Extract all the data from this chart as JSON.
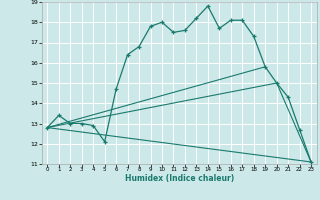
{
  "xlabel": "Humidex (Indice chaleur)",
  "bg_color": "#cce8e8",
  "grid_color": "#ffffff",
  "line_color": "#1a7a6e",
  "xlim": [
    -0.5,
    23.5
  ],
  "ylim": [
    11,
    19
  ],
  "xticks": [
    0,
    1,
    2,
    3,
    4,
    5,
    6,
    7,
    8,
    9,
    10,
    11,
    12,
    13,
    14,
    15,
    16,
    17,
    18,
    19,
    20,
    21,
    22,
    23
  ],
  "yticks": [
    11,
    12,
    13,
    14,
    15,
    16,
    17,
    18,
    19
  ],
  "series1_x": [
    0,
    1,
    2,
    3,
    4,
    5,
    6,
    7,
    8,
    9,
    10,
    11,
    12,
    13,
    14,
    15,
    16,
    17,
    18,
    19,
    20,
    21,
    22,
    23
  ],
  "series1_y": [
    12.8,
    13.4,
    13.0,
    13.0,
    12.9,
    12.1,
    14.7,
    16.4,
    16.8,
    17.8,
    18.0,
    17.5,
    17.6,
    18.2,
    18.8,
    17.7,
    18.1,
    18.1,
    17.3,
    15.8,
    15.0,
    14.3,
    12.7,
    11.1
  ],
  "line2_x": [
    0,
    19
  ],
  "line2_y": [
    12.8,
    15.8
  ],
  "line3_x": [
    0,
    23
  ],
  "line3_y": [
    12.8,
    11.1
  ],
  "line4_x": [
    0,
    20,
    23
  ],
  "line4_y": [
    12.8,
    15.0,
    11.1
  ]
}
